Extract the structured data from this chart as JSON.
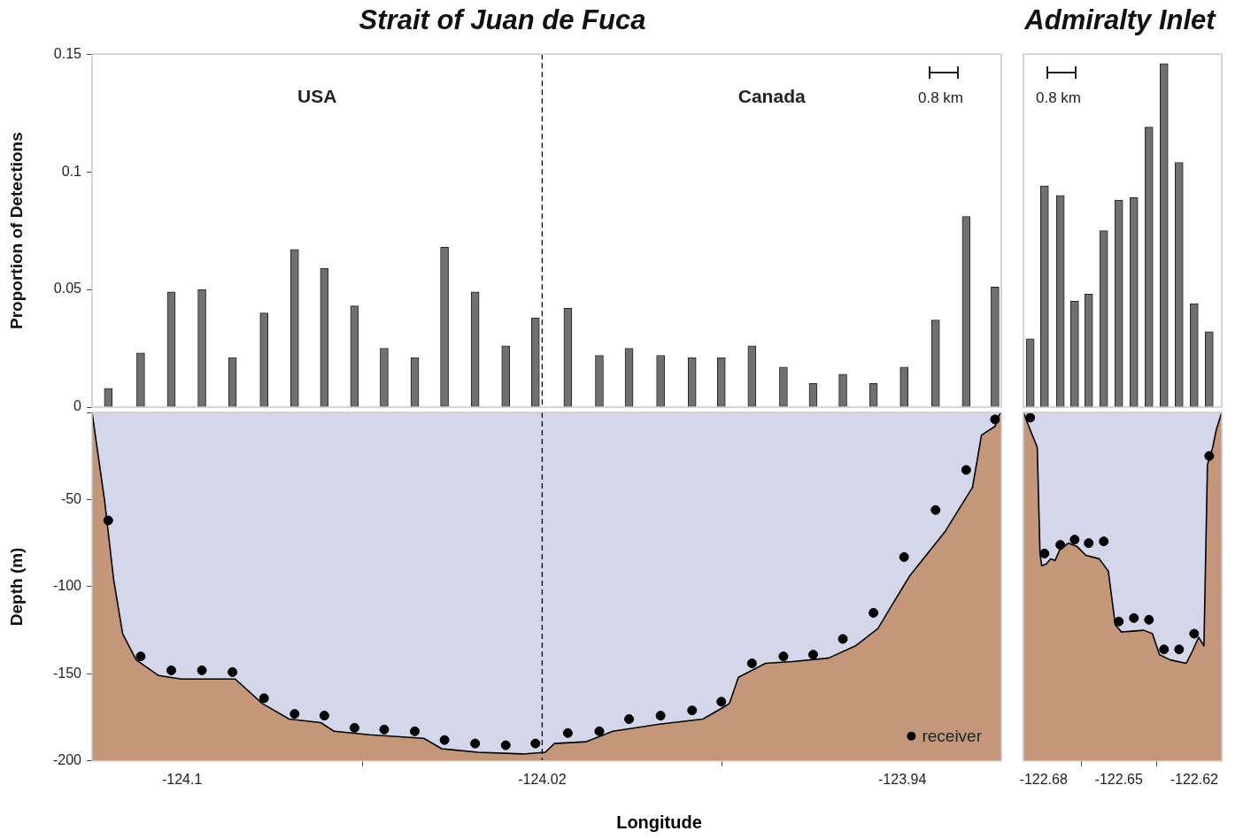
{
  "chart_data": [
    {
      "type": "bar",
      "title": "Strait of Juan de Fuca",
      "ylabel": "Proportion of Detections",
      "tick_labels": "y",
      "xlim": [
        -124.12,
        -123.918
      ],
      "ylim": [
        0,
        0.15
      ],
      "yticks": [
        0,
        0.05,
        0.1,
        0.15
      ],
      "series": [
        {
          "color": "#707070",
          "x": [
            -124.1164,
            -124.1092,
            -124.1024,
            -124.0956,
            -124.0888,
            -124.0818,
            -124.075,
            -124.0684,
            -124.0617,
            -124.0551,
            -124.0483,
            -124.0417,
            -124.0349,
            -124.0281,
            -124.0215,
            -124.0143,
            -124.0073,
            -124.0007,
            -123.9937,
            -123.9867,
            -123.9802,
            -123.9734,
            -123.9664,
            -123.9598,
            -123.9532,
            -123.9464,
            -123.9396,
            -123.9326,
            -123.9258,
            -123.9194
          ],
          "values": [
            0.008,
            0.023,
            0.049,
            0.05,
            0.021,
            0.04,
            0.067,
            0.059,
            0.043,
            0.025,
            0.021,
            0.068,
            0.049,
            0.026,
            0.038,
            0.042,
            0.022,
            0.025,
            0.022,
            0.021,
            0.021,
            0.026,
            0.017,
            0.01,
            0.014,
            0.01,
            0.017,
            0.037,
            0.081,
            0.051
          ]
        }
      ],
      "ref_lines": [
        {
          "axis": "x",
          "value": -124.02,
          "line_style": "dashed",
          "color": "#000000"
        }
      ],
      "annotations": [
        "USA",
        "Canada",
        "0.8 km"
      ]
    },
    {
      "type": "area",
      "xlabel": "Longitude",
      "ylabel": "Depth (m)",
      "xlim": [
        -124.12,
        -123.918
      ],
      "xticks": [
        -124.1,
        -124.02,
        -123.94
      ],
      "ylim": [
        -200,
        0
      ],
      "yticks": [
        -200,
        -150,
        -100,
        -50,
        {
          "value": 0,
          "label": null
        }
      ],
      "legend": "bottom right",
      "series": [
        {
          "type": "area",
          "color": "#d4d7ea",
          "x": [
            -124.12,
            -124.1172,
            -124.1152,
            -124.1132,
            -124.1102,
            -124.1052,
            -124.1002,
            -124.0882,
            -124.0822,
            -124.0762,
            -124.0692,
            -124.0662,
            -124.0583,
            -124.0463,
            -124.0423,
            -124.0343,
            -124.0243,
            -124.0193,
            -124.0173,
            -124.0103,
            -124.0043,
            -123.9943,
            -123.9843,
            -123.9803,
            -123.9784,
            -123.9764,
            -123.9704,
            -123.9644,
            -123.9564,
            -123.9504,
            -123.9454,
            -123.9424,
            -123.9384,
            -123.9304,
            -123.9244,
            -123.9224,
            -123.9194,
            -123.9186,
            -123.918
          ],
          "values": [
            0,
            -51,
            -96,
            -127,
            -142,
            -151,
            -153,
            -153,
            -167,
            -176,
            -178,
            -183,
            -185,
            -187,
            -193,
            -195,
            -196,
            -195,
            -190,
            -189,
            -183,
            -179,
            -176,
            -170,
            -167,
            -152,
            -144,
            -143,
            -141,
            -134,
            -124,
            -111,
            -94,
            -68,
            -43,
            -13,
            -8,
            -2,
            0
          ]
        },
        {
          "type": "scatter",
          "name": "receiver",
          "marker": "circle",
          "color": "#000000",
          "x": [
            -124.1164,
            -124.1092,
            -124.1024,
            -124.0956,
            -124.0888,
            -124.0818,
            -124.075,
            -124.0684,
            -124.0617,
            -124.0551,
            -124.0483,
            -124.0417,
            -124.0349,
            -124.0281,
            -124.0215,
            -124.0143,
            -124.0073,
            -124.0007,
            -123.9937,
            -123.9867,
            -123.9802,
            -123.9734,
            -123.9664,
            -123.9598,
            -123.9532,
            -123.9464,
            -123.9396,
            -123.9326,
            -123.9258,
            -123.9194
          ],
          "values": [
            -62,
            -140,
            -148,
            -148,
            -149,
            -164,
            -173,
            -174,
            -181,
            -182,
            -183,
            -188,
            -190,
            -191,
            -190,
            -184,
            -183,
            -176,
            -174,
            -171,
            -166,
            -144,
            -140,
            -139,
            -130,
            -115,
            -83,
            -56,
            -33,
            -4
          ]
        }
      ],
      "bands": [
        {
          "axis": "y",
          "from": -200,
          "to": 0,
          "color": "#c4977a"
        }
      ],
      "ref_lines": [
        {
          "axis": "x",
          "value": -124.02,
          "line_style": "dashed",
          "color": "#000000"
        }
      ]
    },
    {
      "type": "bar",
      "title": "Admiralty Inlet",
      "tick_labels": false,
      "xlim": [
        -122.688,
        -122.609
      ],
      "ylim": [
        0,
        0.15
      ],
      "series": [
        {
          "color": "#707070",
          "x": [
            -122.6853,
            -122.6796,
            -122.6733,
            -122.6676,
            -122.662,
            -122.656,
            -122.65,
            -122.644,
            -122.638,
            -122.632,
            -122.626,
            -122.62,
            -122.614
          ],
          "values": [
            0.029,
            0.094,
            0.09,
            0.045,
            0.048,
            0.075,
            0.088,
            0.089,
            0.119,
            0.146,
            0.104,
            0.044,
            0.032
          ]
        }
      ],
      "annotations": [
        "0.8 km"
      ]
    },
    {
      "type": "area",
      "tick_labels": "x",
      "xlim": [
        -122.688,
        -122.609
      ],
      "xticks": [
        -122.68,
        -122.65,
        -122.62
      ],
      "ylim": [
        -200,
        0
      ],
      "series": [
        {
          "type": "area",
          "color": "#d4d7ea",
          "x": [
            -122.688,
            -122.6853,
            -122.6825,
            -122.6814,
            -122.6807,
            -122.6789,
            -122.6772,
            -122.6754,
            -122.6736,
            -122.6701,
            -122.6666,
            -122.6631,
            -122.6578,
            -122.6542,
            -122.6514,
            -122.6489,
            -122.6401,
            -122.6366,
            -122.6338,
            -122.6295,
            -122.6232,
            -122.6207,
            -122.6182,
            -122.6161,
            -122.6147,
            -122.6126,
            -122.6112,
            -122.609
          ],
          "values": [
            0,
            -10,
            -20,
            -81,
            -88,
            -87,
            -84,
            -85,
            -79,
            -75,
            -77,
            -82,
            -84,
            -91,
            -122,
            -126,
            -125,
            -127,
            -139,
            -142,
            -144,
            -137,
            -129,
            -134,
            -30,
            -20,
            -10,
            0
          ]
        },
        {
          "type": "scatter",
          "marker": "circle",
          "color": "#000000",
          "x": [
            -122.6853,
            -122.6796,
            -122.6733,
            -122.6676,
            -122.662,
            -122.656,
            -122.65,
            -122.644,
            -122.638,
            -122.632,
            -122.626,
            -122.62,
            -122.614
          ],
          "values": [
            -3,
            -81,
            -76,
            -73,
            -75,
            -74,
            -120,
            -118,
            -119,
            -136,
            -136,
            -127,
            -25
          ]
        }
      ],
      "bands": [
        {
          "axis": "y",
          "from": -200,
          "to": 0,
          "color": "#c4977a"
        }
      ]
    }
  ]
}
